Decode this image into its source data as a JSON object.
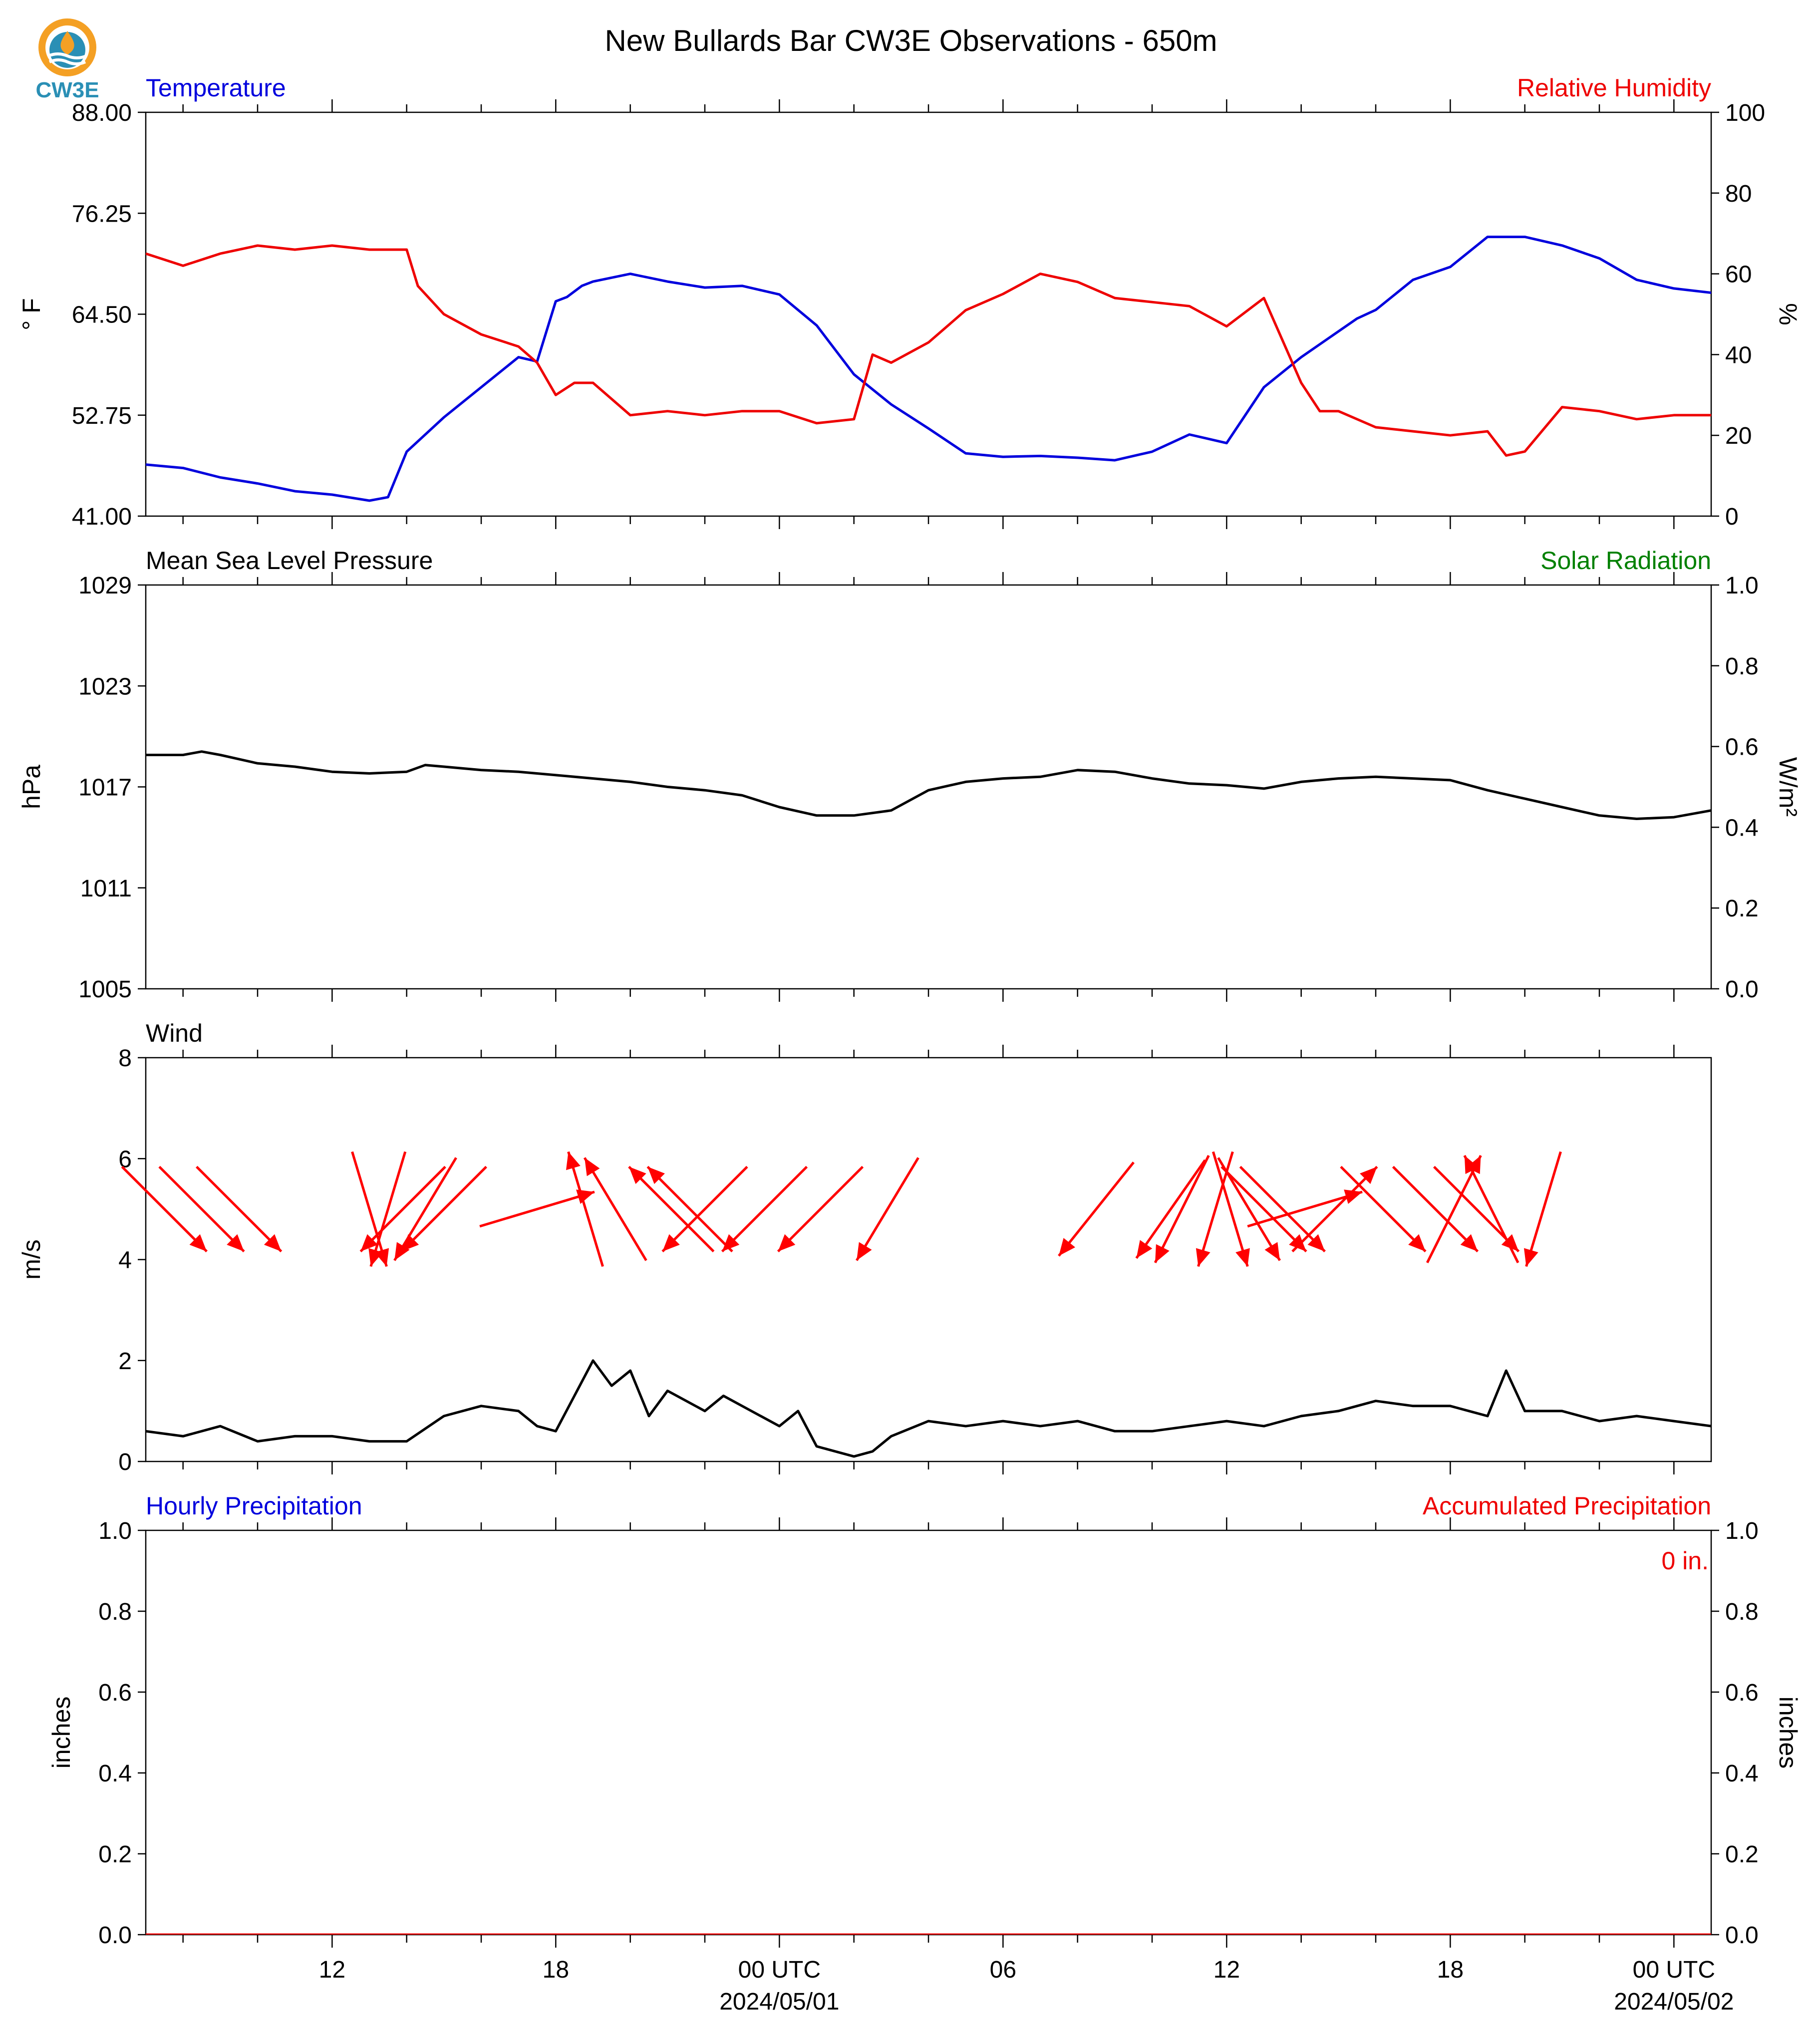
{
  "page": {
    "title": "New Bullards Bar CW3E Observations - 650m",
    "logo_text": "CW3E"
  },
  "colors": {
    "temperature": "#0000dd",
    "humidity": "#ee0000",
    "pressure": "#000000",
    "solar": "#008000",
    "wind_line": "#000000",
    "wind_arrow": "#ff0000",
    "precip_hourly": "#0000dd",
    "precip_accum": "#ee0000",
    "logo_orange": "#f4a024",
    "logo_blue": "#2a8fb5"
  },
  "time_axis": {
    "start": "2024-04-30T07:00Z",
    "end": "2024-05-02T01:00Z",
    "major_ticks": [
      {
        "t": 5,
        "label": "12"
      },
      {
        "t": 11,
        "label": "18"
      },
      {
        "t": 17,
        "label": "00 UTC"
      },
      {
        "t": 23,
        "label": "06"
      },
      {
        "t": 29,
        "label": "12"
      },
      {
        "t": 35,
        "label": "18"
      },
      {
        "t": 41,
        "label": "00 UTC"
      }
    ],
    "date_labels": [
      {
        "t": 17,
        "label": "2024/05/01"
      },
      {
        "t": 41,
        "label": "2024/05/02"
      }
    ]
  },
  "chart_data": [
    {
      "type": "line",
      "panel": "temperature-humidity",
      "left_title": "Temperature",
      "right_title": "Relative Humidity",
      "ylabel_left": "° F",
      "ylabel_right": "%",
      "ylim_left": [
        41,
        88
      ],
      "ylim_right": [
        0,
        100
      ],
      "yticks_left": [
        "41.00",
        "52.75",
        "64.50",
        "76.25",
        "88.00"
      ],
      "yticks_right": [
        "0",
        "20",
        "40",
        "60",
        "80",
        "100"
      ],
      "series": [
        {
          "name": "Temperature",
          "axis": "left",
          "x": [
            0,
            1,
            2,
            3,
            4,
            5,
            6,
            6.5,
            7,
            8,
            9,
            10,
            10.5,
            11,
            11.3,
            11.7,
            12,
            13,
            14,
            15,
            16,
            17,
            18,
            19,
            20,
            21,
            22,
            23,
            24,
            25,
            26,
            27,
            28,
            29,
            30,
            31,
            32,
            32.5,
            33,
            34,
            35,
            36,
            37,
            38,
            39,
            40,
            41,
            42
          ],
          "y": [
            47,
            46.6,
            45.5,
            44.8,
            43.9,
            43.5,
            42.8,
            43.2,
            48.5,
            52.5,
            56,
            59.5,
            59,
            66,
            66.5,
            67.8,
            68.3,
            69.2,
            68.3,
            67.6,
            67.8,
            66.8,
            63.2,
            57.5,
            54,
            51.2,
            48.3,
            47.9,
            48,
            47.8,
            47.5,
            48.5,
            50.5,
            49.5,
            56,
            59.5,
            62.5,
            64,
            65,
            68.5,
            70,
            73.5,
            73.5,
            72.5,
            71,
            68.5,
            67.5,
            67
          ]
        },
        {
          "name": "Relative Humidity",
          "axis": "right",
          "x": [
            0,
            1,
            2,
            3,
            4,
            5,
            6,
            7,
            7.3,
            8,
            9,
            10,
            10.5,
            11,
            11.5,
            12,
            13,
            14,
            15,
            16,
            17,
            18,
            19,
            19.5,
            20,
            21,
            22,
            23,
            24,
            25,
            26,
            27,
            28,
            29,
            30,
            31,
            31.5,
            32,
            33,
            34,
            35,
            36,
            36.5,
            37,
            38,
            39,
            40,
            41,
            42
          ],
          "y": [
            65,
            62,
            65,
            67,
            66,
            67,
            66,
            66,
            57,
            50,
            45,
            42,
            38,
            30,
            33,
            33,
            25,
            26,
            25,
            26,
            26,
            23,
            24,
            40,
            38,
            43,
            51,
            55,
            60,
            58,
            54,
            53,
            52,
            47,
            54,
            33,
            26,
            26,
            22,
            21,
            20,
            21,
            15,
            16,
            27,
            26,
            24,
            25,
            25
          ]
        }
      ]
    },
    {
      "type": "line",
      "panel": "pressure-solar",
      "left_title": "Mean Sea Level Pressure",
      "right_title": "Solar Radiation",
      "ylabel_left": "hPa",
      "ylabel_right": "W/m²",
      "ylim_left": [
        1005,
        1029
      ],
      "ylim_right": [
        0,
        1
      ],
      "yticks_left": [
        "1005",
        "1011",
        "1017",
        "1023",
        "1029"
      ],
      "yticks_right": [
        "0.0",
        "0.2",
        "0.4",
        "0.6",
        "0.8",
        "1.0"
      ],
      "series": [
        {
          "name": "Mean Sea Level Pressure",
          "axis": "left",
          "x": [
            0,
            1,
            1.5,
            2,
            3,
            4,
            5,
            6,
            7,
            7.5,
            8,
            9,
            10,
            11,
            12,
            13,
            14,
            15,
            16,
            17,
            18,
            19,
            20,
            21,
            22,
            23,
            24,
            25,
            26,
            27,
            28,
            29,
            30,
            31,
            32,
            33,
            34,
            35,
            36,
            37,
            38,
            39,
            40,
            41,
            42
          ],
          "y": [
            1018.9,
            1018.9,
            1019.1,
            1018.9,
            1018.4,
            1018.2,
            1017.9,
            1017.8,
            1017.9,
            1018.3,
            1018.2,
            1018,
            1017.9,
            1017.7,
            1017.5,
            1017.3,
            1017,
            1016.8,
            1016.5,
            1015.8,
            1015.3,
            1015.3,
            1015.6,
            1016.8,
            1017.3,
            1017.5,
            1017.6,
            1018,
            1017.9,
            1017.5,
            1017.2,
            1017.1,
            1016.9,
            1017.3,
            1017.5,
            1017.6,
            1017.5,
            1017.4,
            1016.8,
            1016.3,
            1015.8,
            1015.3,
            1015.1,
            1015.2,
            1015.6
          ]
        },
        {
          "name": "Solar Radiation",
          "axis": "right",
          "x": [],
          "y": []
        }
      ]
    },
    {
      "type": "line",
      "panel": "wind",
      "left_title": "Wind",
      "ylabel_left": "m/s",
      "ylim_left": [
        0,
        8
      ],
      "yticks_left": [
        "0",
        "2",
        "4",
        "6",
        "8"
      ],
      "series": [
        {
          "name": "Wind",
          "axis": "left",
          "x": [
            0,
            1,
            2,
            3,
            4,
            5,
            6,
            7,
            8,
            9,
            10,
            10.5,
            11,
            11.5,
            12,
            12.5,
            13,
            13.5,
            14,
            14.5,
            15,
            15.5,
            16,
            16.5,
            17,
            17.5,
            18,
            18.5,
            19,
            19.5,
            20,
            21,
            22,
            23,
            24,
            25,
            26,
            27,
            28,
            29,
            30,
            31,
            32,
            33,
            34,
            35,
            35.5,
            36,
            36.5,
            37,
            38,
            39,
            40,
            41,
            42
          ],
          "y": [
            0.6,
            0.5,
            0.7,
            0.4,
            0.5,
            0.5,
            0.4,
            0.4,
            0.9,
            1.1,
            1.0,
            0.7,
            0.6,
            1.3,
            2.0,
            1.5,
            1.8,
            0.9,
            1.4,
            1.2,
            1.0,
            1.3,
            1.1,
            0.9,
            0.7,
            1.0,
            0.3,
            0.2,
            0.1,
            0.2,
            0.5,
            0.8,
            0.7,
            0.8,
            0.7,
            0.8,
            0.6,
            0.6,
            0.7,
            0.8,
            0.7,
            0.9,
            1.0,
            1.2,
            1.1,
            1.1,
            1.0,
            0.9,
            1.8,
            1.0,
            1.0,
            0.8,
            0.9,
            0.8,
            0.7
          ]
        }
      ],
      "arrows": {
        "x": [
          0.5,
          1.5,
          2.5,
          6.0,
          6.5,
          6.9,
          7.5,
          8.0,
          10.5,
          11.8,
          12.6,
          14.1,
          14.6,
          15.0,
          16.6,
          18.1,
          19.9,
          25.5,
          27.5,
          27.8,
          28.7,
          29.1,
          29.6,
          30.0,
          30.5,
          31.1,
          31.9,
          33.2,
          34.6,
          35.1,
          35.7,
          36.1,
          37.5
        ],
        "u": [
          1.0,
          1.0,
          1.0,
          0.3,
          -0.3,
          -1.0,
          -0.6,
          -1.0,
          1.0,
          -0.3,
          -0.6,
          -1.0,
          -1.0,
          -1.0,
          -1.0,
          -1.0,
          -0.6,
          -0.8,
          -0.7,
          -0.5,
          -0.3,
          0.3,
          0.6,
          1.0,
          1.0,
          1.0,
          1.0,
          1.0,
          1.0,
          0.5,
          1.0,
          -0.5,
          -0.3
        ],
        "v": [
          1.0,
          1.0,
          1.0,
          1.0,
          1.0,
          1.0,
          1.0,
          1.0,
          -0.3,
          -1.0,
          -1.0,
          -1.0,
          -1.0,
          1.0,
          1.0,
          1.0,
          1.0,
          1.0,
          1.0,
          1.0,
          1.0,
          1.0,
          1.0,
          1.0,
          1.0,
          -0.3,
          -1.0,
          1.0,
          1.0,
          -1.0,
          1.0,
          -1.0,
          1.0
        ]
      }
    },
    {
      "type": "bar",
      "panel": "precipitation",
      "left_title": "Hourly Precipitation",
      "right_title": "Accumulated Precipitation",
      "ylabel_left": "inches",
      "ylabel_right": "inches",
      "ylim_left": [
        0,
        1
      ],
      "ylim_right": [
        0,
        1
      ],
      "yticks_left": [
        "0.0",
        "0.2",
        "0.4",
        "0.6",
        "0.8",
        "1.0"
      ],
      "yticks_right": [
        "0.0",
        "0.2",
        "0.4",
        "0.6",
        "0.8",
        "1.0"
      ],
      "accumulated_label": "0 in.",
      "series": [
        {
          "name": "Hourly Precipitation",
          "axis": "left",
          "x": [],
          "y": []
        },
        {
          "name": "Accumulated Precipitation",
          "axis": "right",
          "x": [
            0,
            42
          ],
          "y": [
            0,
            0
          ]
        }
      ]
    }
  ]
}
